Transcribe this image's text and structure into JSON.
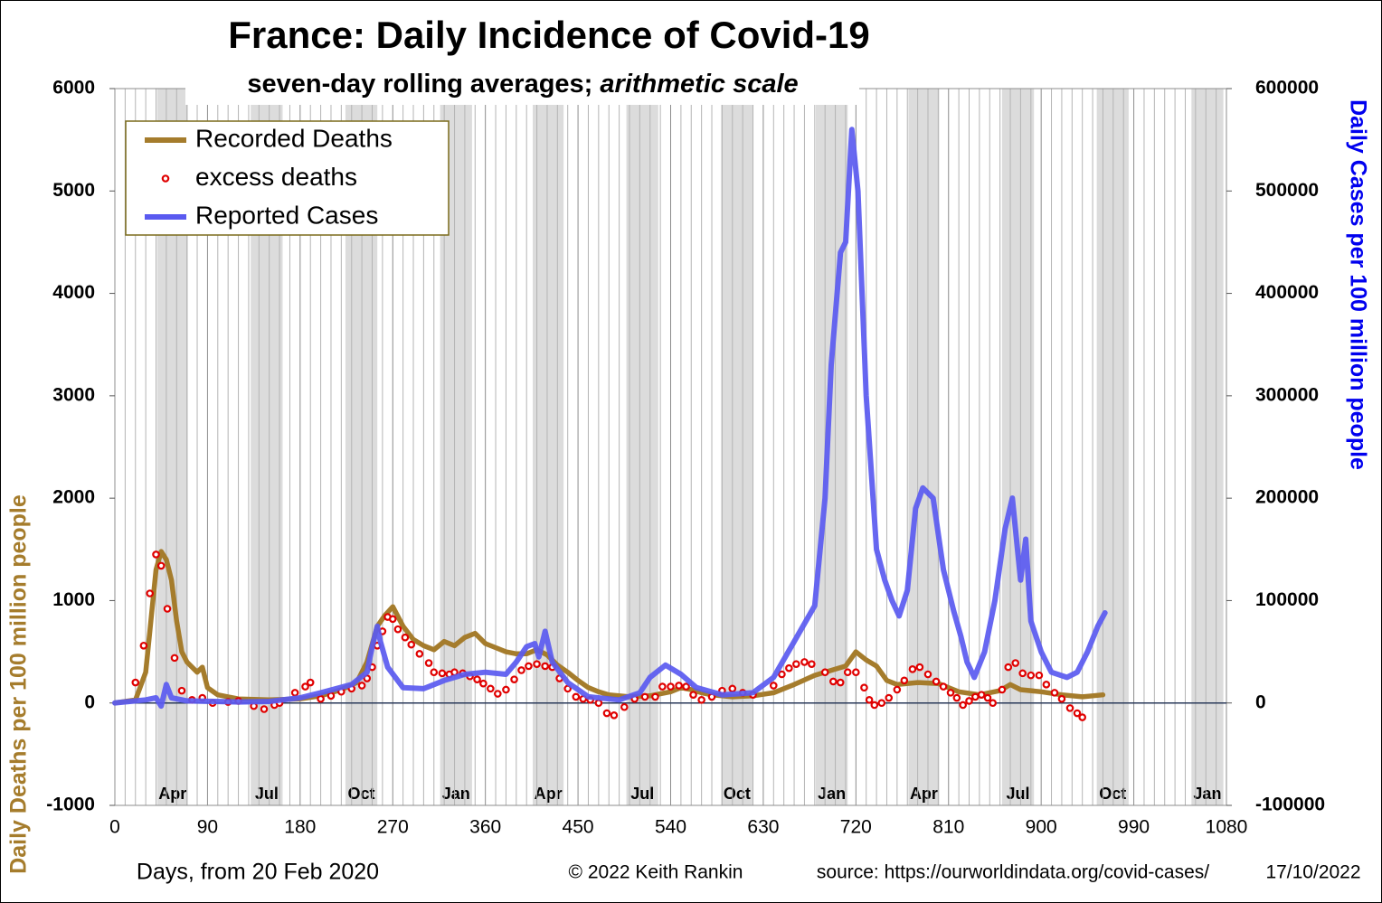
{
  "chart_data": {
    "type": "line",
    "title": "France: Daily Incidence of Covid-19",
    "subtitle": "seven-day rolling averages;",
    "subtitle_emphasis": "arithmetic scale",
    "xlabel": "Days, from 20 Feb 2020",
    "ylabel": "Daily Deaths per 100 million people",
    "y2label": "Daily Cases per 100 million people",
    "credit": "© 2022  Keith Rankin",
    "source": "source: https://ourworldindata.org/covid-cases/",
    "date": "17/10/2022",
    "xlim": [
      0,
      1080
    ],
    "xticks": [
      0,
      90,
      180,
      270,
      360,
      450,
      540,
      630,
      720,
      810,
      900,
      990,
      1080
    ],
    "ylim": [
      -1000,
      6000
    ],
    "yticks": [
      -1000,
      0,
      1000,
      2000,
      3000,
      4000,
      5000,
      6000
    ],
    "y2lim": [
      -100000,
      600000
    ],
    "y2ticks": [
      -100000,
      0,
      100000,
      200000,
      300000,
      400000,
      500000,
      600000
    ],
    "legend": "upper left",
    "month_bands": [
      {
        "label": "Apr",
        "start": 41,
        "end": 71
      },
      {
        "label": "Jul",
        "start": 132,
        "end": 163
      },
      {
        "label": "Oct",
        "start": 224,
        "end": 255
      },
      {
        "label": "Jan",
        "start": 316,
        "end": 347
      },
      {
        "label": "Apr",
        "start": 406,
        "end": 436
      },
      {
        "label": "Jul",
        "start": 497,
        "end": 528
      },
      {
        "label": "Oct",
        "start": 589,
        "end": 620
      },
      {
        "label": "Jan",
        "start": 681,
        "end": 712
      },
      {
        "label": "Apr",
        "start": 771,
        "end": 801
      },
      {
        "label": "Jul",
        "start": 862,
        "end": 893
      },
      {
        "label": "Oct",
        "start": 954,
        "end": 985
      },
      {
        "label": "Jan",
        "start": 1046,
        "end": 1077
      }
    ],
    "series": [
      {
        "name": "Recorded Deaths",
        "color": "#a57c2c",
        "style": "line",
        "axis": "y",
        "x": [
          0,
          20,
          30,
          35,
          40,
          45,
          50,
          55,
          60,
          65,
          70,
          80,
          85,
          90,
          100,
          120,
          150,
          180,
          200,
          220,
          235,
          245,
          255,
          262,
          270,
          280,
          290,
          300,
          310,
          320,
          330,
          340,
          350,
          360,
          370,
          380,
          390,
          400,
          410,
          420,
          430,
          440,
          450,
          460,
          470,
          480,
          500,
          520,
          540,
          550,
          560,
          570,
          580,
          600,
          620,
          640,
          660,
          680,
          700,
          710,
          720,
          730,
          740,
          750,
          760,
          780,
          800,
          820,
          840,
          860,
          870,
          880,
          900,
          920,
          940,
          950,
          960
        ],
        "values": [
          0,
          30,
          300,
          800,
          1300,
          1480,
          1400,
          1200,
          800,
          500,
          400,
          300,
          350,
          150,
          80,
          40,
          30,
          40,
          70,
          130,
          200,
          400,
          750,
          850,
          940,
          750,
          620,
          560,
          520,
          600,
          560,
          640,
          680,
          580,
          540,
          500,
          480,
          480,
          520,
          470,
          370,
          300,
          220,
          150,
          110,
          80,
          60,
          70,
          110,
          150,
          130,
          100,
          80,
          60,
          70,
          100,
          180,
          270,
          330,
          360,
          500,
          420,
          360,
          220,
          180,
          200,
          190,
          110,
          80,
          120,
          180,
          130,
          110,
          80,
          60,
          70,
          80
        ]
      },
      {
        "name": "excess deaths",
        "color": "#e00000",
        "style": "circle",
        "axis": "y",
        "x": [
          20,
          28,
          34,
          40,
          45,
          51,
          58,
          65,
          75,
          85,
          95,
          110,
          120,
          135,
          145,
          155,
          160,
          175,
          185,
          190,
          200,
          210,
          220,
          230,
          240,
          245,
          250,
          255,
          260,
          265,
          270,
          275,
          282,
          288,
          296,
          305,
          310,
          318,
          325,
          330,
          338,
          345,
          352,
          358,
          365,
          372,
          380,
          388,
          395,
          402,
          410,
          418,
          425,
          432,
          440,
          448,
          455,
          462,
          470,
          478,
          485,
          495,
          505,
          515,
          525,
          532,
          540,
          548,
          555,
          562,
          570,
          580,
          590,
          600,
          610,
          620,
          640,
          648,
          655,
          662,
          670,
          677,
          690,
          698,
          705,
          712,
          720,
          728,
          733,
          738,
          745,
          752,
          760,
          767,
          775,
          782,
          790,
          798,
          805,
          812,
          818,
          824,
          830,
          836,
          842,
          848,
          853,
          862,
          868,
          875,
          882,
          890,
          898,
          905,
          913,
          920,
          928,
          935,
          940
        ],
        "values": [
          200,
          560,
          1070,
          1450,
          1340,
          920,
          440,
          120,
          30,
          50,
          0,
          10,
          20,
          -30,
          -60,
          -20,
          0,
          100,
          160,
          200,
          40,
          70,
          110,
          140,
          170,
          240,
          350,
          560,
          700,
          840,
          820,
          720,
          640,
          570,
          480,
          390,
          300,
          290,
          280,
          300,
          290,
          260,
          230,
          190,
          140,
          90,
          130,
          230,
          320,
          360,
          380,
          360,
          350,
          240,
          140,
          60,
          40,
          30,
          0,
          -100,
          -120,
          -40,
          40,
          60,
          60,
          160,
          160,
          170,
          160,
          80,
          30,
          60,
          120,
          140,
          100,
          80,
          170,
          280,
          340,
          380,
          400,
          380,
          300,
          210,
          200,
          300,
          300,
          150,
          30,
          -20,
          0,
          50,
          130,
          220,
          330,
          350,
          280,
          210,
          160,
          100,
          50,
          -20,
          20,
          60,
          80,
          50,
          0,
          130,
          350,
          390,
          290,
          270,
          270,
          180,
          100,
          40,
          -50,
          -100,
          -140
        ]
      },
      {
        "name": "Reported Cases",
        "color": "#5a5af0",
        "style": "line",
        "axis": "y2",
        "x": [
          0,
          30,
          40,
          45,
          50,
          55,
          70,
          120,
          150,
          180,
          200,
          230,
          245,
          250,
          255,
          258,
          265,
          280,
          300,
          320,
          340,
          360,
          380,
          390,
          400,
          408,
          412,
          418,
          425,
          440,
          460,
          490,
          510,
          520,
          535,
          550,
          565,
          590,
          620,
          640,
          660,
          680,
          690,
          696,
          705,
          710,
          716,
          722,
          730,
          740,
          748,
          755,
          762,
          770,
          778,
          785,
          795,
          805,
          815,
          822,
          828,
          835,
          845,
          855,
          865,
          872,
          880,
          885,
          890,
          900,
          910,
          925,
          935,
          945,
          955,
          962
        ],
        "values": [
          0,
          3000,
          5000,
          -3000,
          18000,
          5000,
          2000,
          1000,
          1500,
          5000,
          10000,
          18000,
          30000,
          55000,
          75000,
          60000,
          35000,
          15000,
          14000,
          22000,
          28000,
          30000,
          28000,
          40000,
          55000,
          58000,
          45000,
          70000,
          40000,
          20000,
          6000,
          3000,
          10000,
          25000,
          37000,
          28000,
          15000,
          8000,
          10000,
          25000,
          60000,
          95000,
          200000,
          330000,
          440000,
          450000,
          560000,
          500000,
          300000,
          150000,
          120000,
          100000,
          85000,
          110000,
          190000,
          210000,
          200000,
          130000,
          90000,
          65000,
          40000,
          25000,
          50000,
          100000,
          170000,
          200000,
          120000,
          160000,
          80000,
          50000,
          30000,
          25000,
          30000,
          50000,
          75000,
          88000
        ]
      }
    ]
  }
}
